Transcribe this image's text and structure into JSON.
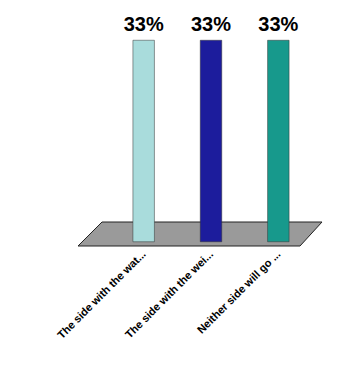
{
  "chart_data": {
    "type": "bar",
    "categories": [
      "The side with the wat...",
      "The side with the wei...",
      "Neither side will go ..."
    ],
    "values": [
      33,
      33,
      33
    ],
    "value_labels": [
      "33%",
      "33%",
      "33%"
    ],
    "colors": [
      "#a9dcdc",
      "#1c1c9c",
      "#17998c"
    ],
    "ylim": [
      0,
      33
    ],
    "data_labels": true,
    "tick_labels": "x",
    "grid": false
  }
}
